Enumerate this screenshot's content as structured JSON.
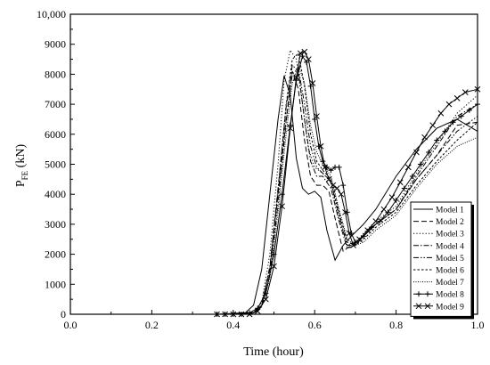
{
  "chart_data": {
    "type": "line",
    "title": "",
    "xlabel": "Time (hour)",
    "ylabel_main": "P",
    "ylabel_sub": "FE",
    "ylabel_unit": "(kN)",
    "xlim": [
      0.0,
      1.0
    ],
    "ylim": [
      0,
      10000
    ],
    "xticks": [
      "0.0",
      "0.2",
      "0.4",
      "0.6",
      "0.8",
      "1.0"
    ],
    "yticks": [
      "0",
      "1000",
      "2000",
      "3000",
      "4000",
      "5000",
      "6000",
      "7000",
      "8000",
      "9000",
      "10,000"
    ],
    "legend_position": "bottom-right",
    "grid": false,
    "series": [
      {
        "name": "Model 1",
        "style": "solid",
        "marker": "none",
        "x": [
          0.36,
          0.43,
          0.45,
          0.47,
          0.49,
          0.51,
          0.525,
          0.54,
          0.555,
          0.57,
          0.585,
          0.6,
          0.615,
          0.63,
          0.65,
          0.67,
          0.69,
          0.72,
          0.75,
          0.8,
          0.85,
          0.9,
          0.95,
          1.0
        ],
        "y": [
          0,
          50,
          300,
          1500,
          4000,
          6500,
          7950,
          7300,
          5200,
          4200,
          4000,
          4100,
          3900,
          2800,
          1800,
          2300,
          2600,
          3000,
          3500,
          4600,
          5500,
          6200,
          6500,
          6100
        ]
      },
      {
        "name": "Model 2",
        "style": "dash",
        "marker": "none",
        "x": [
          0.38,
          0.45,
          0.47,
          0.49,
          0.51,
          0.53,
          0.545,
          0.56,
          0.575,
          0.59,
          0.605,
          0.62,
          0.635,
          0.65,
          0.67,
          0.69,
          0.72,
          0.75,
          0.8,
          0.85,
          0.9,
          0.95,
          1.0
        ],
        "y": [
          0,
          50,
          300,
          1500,
          4000,
          6500,
          8100,
          7500,
          5800,
          4600,
          4300,
          4300,
          4100,
          3200,
          2100,
          2300,
          2600,
          3000,
          3500,
          4500,
          5300,
          6300,
          6400
        ]
      },
      {
        "name": "Model 3",
        "style": "dot",
        "marker": "none",
        "x": [
          0.38,
          0.45,
          0.47,
          0.49,
          0.51,
          0.525,
          0.54,
          0.555,
          0.57,
          0.585,
          0.6,
          0.62,
          0.64,
          0.66,
          0.68,
          0.7,
          0.72,
          0.75,
          0.8,
          0.85,
          0.9,
          0.95,
          1.0
        ],
        "y": [
          0,
          50,
          400,
          2000,
          5000,
          7800,
          8800,
          8500,
          7000,
          5500,
          4900,
          4700,
          4400,
          3200,
          2300,
          2400,
          2700,
          3100,
          3600,
          4700,
          5700,
          6700,
          7300
        ]
      },
      {
        "name": "Model 4",
        "style": "dashdot",
        "marker": "none",
        "x": [
          0.38,
          0.45,
          0.47,
          0.49,
          0.51,
          0.53,
          0.545,
          0.56,
          0.575,
          0.59,
          0.605,
          0.62,
          0.64,
          0.66,
          0.68,
          0.7,
          0.72,
          0.75,
          0.8,
          0.85,
          0.9,
          0.95,
          1.0
        ],
        "y": [
          0,
          50,
          300,
          1600,
          4200,
          6900,
          8300,
          8100,
          6500,
          5100,
          4600,
          4600,
          4200,
          3100,
          2200,
          2300,
          2600,
          3000,
          3500,
          4600,
          5600,
          6600,
          7000
        ]
      },
      {
        "name": "Model 5",
        "style": "dashdotdot",
        "marker": "none",
        "x": [
          0.38,
          0.45,
          0.47,
          0.49,
          0.51,
          0.53,
          0.545,
          0.56,
          0.575,
          0.59,
          0.605,
          0.62,
          0.64,
          0.66,
          0.68,
          0.7,
          0.72,
          0.75,
          0.8,
          0.85,
          0.9,
          0.95,
          1.0
        ],
        "y": [
          0,
          50,
          250,
          1300,
          3700,
          6400,
          8000,
          8200,
          7000,
          5600,
          4900,
          4700,
          4400,
          3300,
          2300,
          2300,
          2600,
          3000,
          3500,
          4500,
          5300,
          6100,
          6600
        ]
      },
      {
        "name": "Model 6",
        "style": "shortdash",
        "marker": "none",
        "x": [
          0.38,
          0.45,
          0.47,
          0.49,
          0.51,
          0.53,
          0.545,
          0.56,
          0.575,
          0.59,
          0.605,
          0.62,
          0.64,
          0.66,
          0.68,
          0.7,
          0.72,
          0.75,
          0.8,
          0.85,
          0.9,
          0.95,
          1.0
        ],
        "y": [
          0,
          50,
          300,
          1500,
          4100,
          7000,
          8500,
          8700,
          7600,
          6000,
          5100,
          4800,
          4500,
          3400,
          2400,
          2300,
          2500,
          2900,
          3400,
          4300,
          5100,
          5800,
          6400
        ]
      },
      {
        "name": "Model 7",
        "style": "shortdot",
        "marker": "none",
        "x": [
          0.38,
          0.45,
          0.47,
          0.49,
          0.51,
          0.53,
          0.545,
          0.56,
          0.575,
          0.59,
          0.605,
          0.62,
          0.64,
          0.66,
          0.68,
          0.7,
          0.72,
          0.75,
          0.8,
          0.85,
          0.9,
          0.95,
          1.0
        ],
        "y": [
          0,
          50,
          250,
          1200,
          3400,
          6000,
          7700,
          8300,
          7700,
          6300,
          5400,
          5000,
          4600,
          3500,
          2500,
          2300,
          2400,
          2800,
          3300,
          4200,
          5000,
          5600,
          5900
        ]
      },
      {
        "name": "Model 8",
        "style": "solid",
        "marker": "plus",
        "x": [
          0.36,
          0.38,
          0.4,
          0.42,
          0.44,
          0.46,
          0.48,
          0.5,
          0.52,
          0.54,
          0.555,
          0.57,
          0.58,
          0.59,
          0.6,
          0.61,
          0.62,
          0.63,
          0.64,
          0.65,
          0.66,
          0.67,
          0.68,
          0.69,
          0.7,
          0.72,
          0.74,
          0.76,
          0.78,
          0.8,
          0.82,
          0.84,
          0.86,
          0.88,
          0.9,
          0.92,
          0.94,
          0.96,
          0.98,
          1.0
        ],
        "y": [
          0,
          0,
          0,
          0,
          50,
          200,
          700,
          2000,
          4000,
          6300,
          7800,
          8600,
          8400,
          7600,
          6500,
          5600,
          5100,
          4900,
          4800,
          4900,
          4900,
          4300,
          3400,
          2700,
          2400,
          2600,
          2900,
          3100,
          3400,
          3800,
          4200,
          4600,
          5000,
          5400,
          5800,
          6100,
          6400,
          6600,
          6800,
          7000
        ]
      },
      {
        "name": "Model 9",
        "style": "solid",
        "marker": "x",
        "x": [
          0.36,
          0.38,
          0.4,
          0.42,
          0.44,
          0.46,
          0.48,
          0.5,
          0.52,
          0.54,
          0.555,
          0.565,
          0.575,
          0.585,
          0.595,
          0.605,
          0.615,
          0.625,
          0.635,
          0.645,
          0.655,
          0.665,
          0.675,
          0.685,
          0.695,
          0.71,
          0.73,
          0.75,
          0.77,
          0.79,
          0.81,
          0.83,
          0.85,
          0.87,
          0.89,
          0.91,
          0.93,
          0.95,
          0.97,
          1.0
        ],
        "y": [
          0,
          0,
          0,
          0,
          0,
          100,
          500,
          1600,
          3600,
          6200,
          7900,
          8700,
          8750,
          8500,
          7700,
          6600,
          5600,
          4900,
          4500,
          4300,
          4200,
          4000,
          3400,
          2700,
          2300,
          2500,
          2800,
          3100,
          3500,
          3900,
          4400,
          4900,
          5400,
          5900,
          6300,
          6700,
          7000,
          7200,
          7400,
          7500
        ]
      }
    ]
  }
}
